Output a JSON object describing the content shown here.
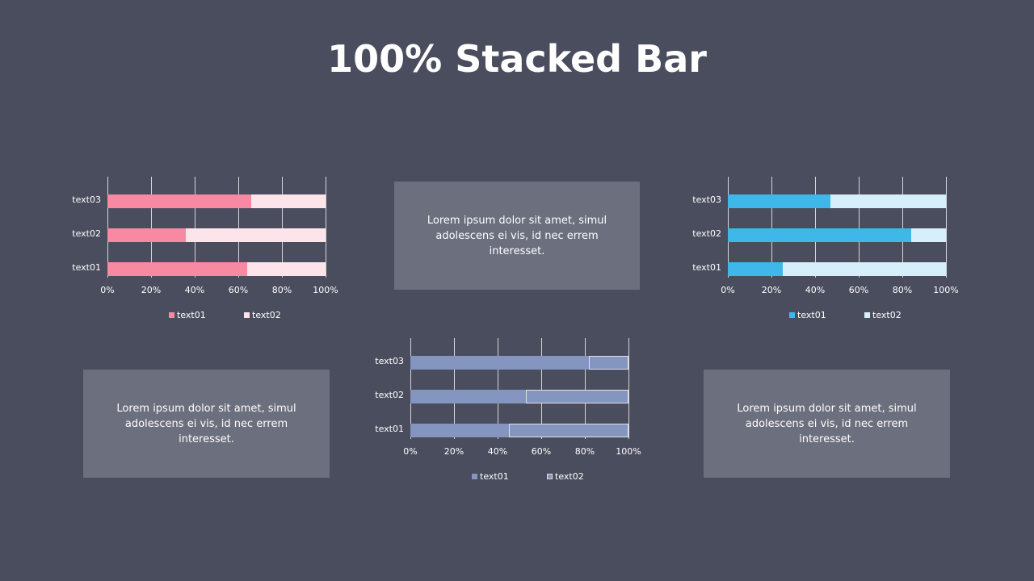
{
  "page": {
    "title": "100% Stacked Bar",
    "background": "#4a4d5e"
  },
  "textboxes": [
    {
      "text": "Lorem ipsum dolor sit amet, simul adolescens ei vis, id nec errem interesset."
    },
    {
      "text": "Lorem ipsum dolor sit amet, simul adolescens ei vis, id nec errem interesset."
    },
    {
      "text": "Lorem ipsum dolor sit amet, simul adolescens ei vis, id nec errem interesset."
    }
  ],
  "chart_data": [
    {
      "type": "bar",
      "stacked": "percent",
      "orientation": "horizontal",
      "title": "",
      "categories": [
        "text01",
        "text02",
        "text03"
      ],
      "series": [
        {
          "name": "text01",
          "color": "#f78aa2",
          "values": [
            64,
            36,
            66
          ]
        },
        {
          "name": "text02",
          "color": "#fde4ea",
          "values": [
            36,
            64,
            34
          ]
        }
      ],
      "xlabel": "",
      "ylabel": "",
      "xticks": [
        "0%",
        "20%",
        "40%",
        "60%",
        "80%",
        "100%"
      ],
      "xlim": [
        0,
        100
      ],
      "grid": true,
      "legend_position": "bottom"
    },
    {
      "type": "bar",
      "stacked": "percent",
      "orientation": "horizontal",
      "title": "",
      "categories": [
        "text01",
        "text02",
        "text03"
      ],
      "series": [
        {
          "name": "text01",
          "color": "#3fb7e8",
          "values": [
            25,
            84,
            47
          ]
        },
        {
          "name": "text02",
          "color": "#d6effa",
          "values": [
            75,
            16,
            53
          ]
        }
      ],
      "xlabel": "",
      "ylabel": "",
      "xticks": [
        "0%",
        "20%",
        "40%",
        "60%",
        "80%",
        "100%"
      ],
      "xlim": [
        0,
        100
      ],
      "grid": true,
      "legend_position": "bottom"
    },
    {
      "type": "bar",
      "stacked": "percent",
      "orientation": "horizontal",
      "title": "",
      "categories": [
        "text01",
        "text02",
        "text03"
      ],
      "series": [
        {
          "name": "text01",
          "color": "#8496c0",
          "values": [
            45,
            53,
            82
          ]
        },
        {
          "name": "text02",
          "color": "#8496c0",
          "border": "#e0e0e0",
          "values": [
            55,
            47,
            18
          ]
        }
      ],
      "xlabel": "",
      "ylabel": "",
      "xticks": [
        "0%",
        "20%",
        "40%",
        "60%",
        "80%",
        "100%"
      ],
      "xlim": [
        0,
        100
      ],
      "grid": true,
      "legend_position": "bottom"
    }
  ]
}
